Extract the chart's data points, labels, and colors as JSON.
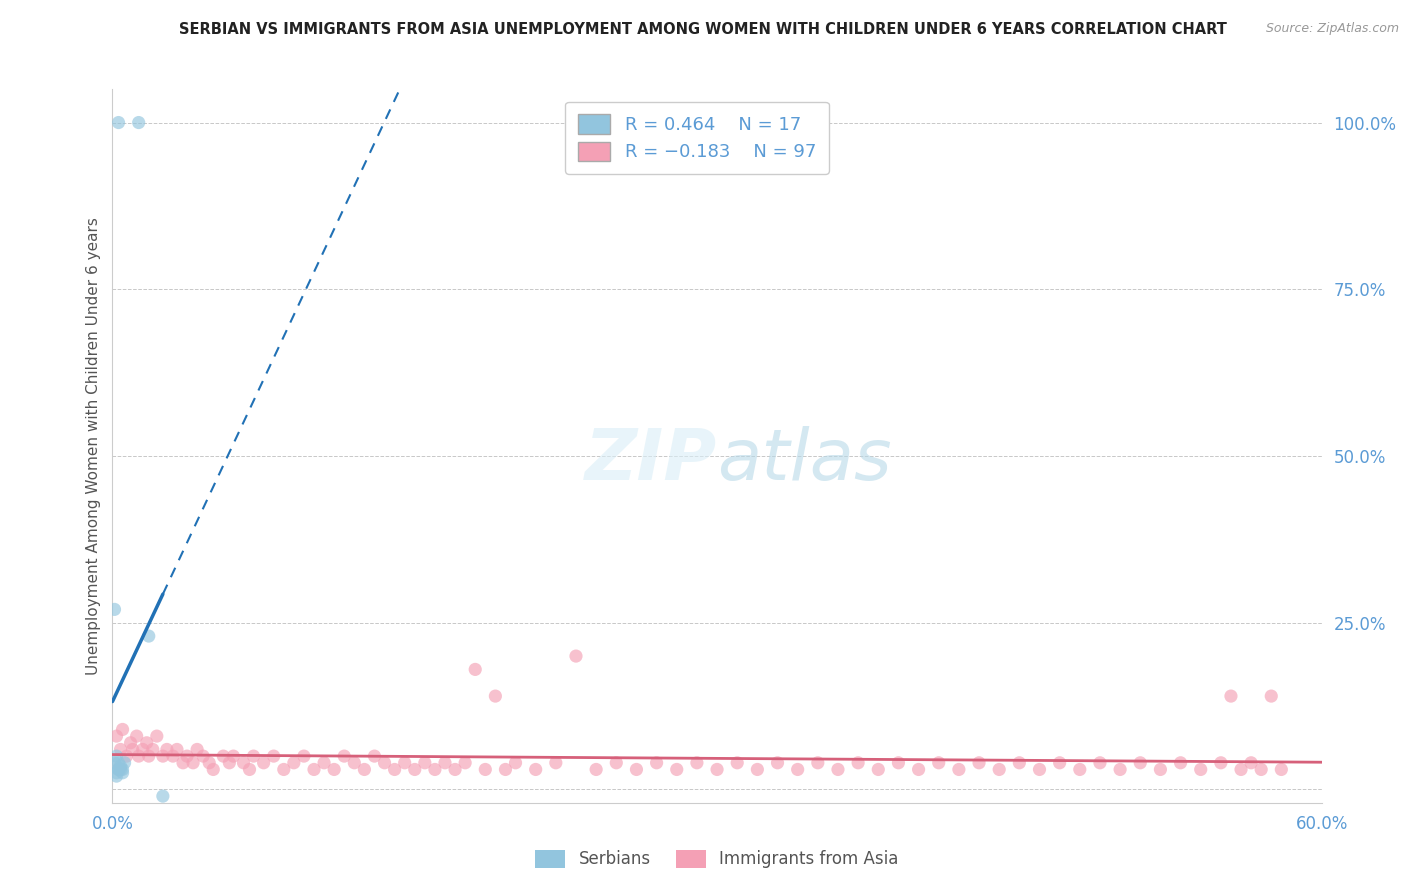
{
  "title": "SERBIAN VS IMMIGRANTS FROM ASIA UNEMPLOYMENT AMONG WOMEN WITH CHILDREN UNDER 6 YEARS CORRELATION CHART",
  "source": "Source: ZipAtlas.com",
  "ylabel": "Unemployment Among Women with Children Under 6 years",
  "xlim": [
    0.0,
    0.6
  ],
  "ylim": [
    -0.02,
    1.05
  ],
  "y_ticks_right": [
    0.0,
    0.25,
    0.5,
    0.75,
    1.0
  ],
  "y_tick_labels_right": [
    "",
    "25.0%",
    "50.0%",
    "75.0%",
    "100.0%"
  ],
  "legend_label_serbian": "Serbians",
  "legend_label_asia": "Immigrants from Asia",
  "color_serbian": "#92c5de",
  "color_asia": "#f4a0b5",
  "color_trendline_serbian": "#2171b5",
  "color_trendline_asia": "#d6607a",
  "color_axis_labels": "#5b9bd5",
  "background_color": "#ffffff",
  "serbian_x": [
    0.003,
    0.013,
    0.001,
    0.001,
    0.002,
    0.003,
    0.004,
    0.005,
    0.006,
    0.002,
    0.003,
    0.004,
    0.005,
    0.003,
    0.002,
    0.018,
    0.025
  ],
  "serbian_y": [
    1.0,
    1.0,
    0.27,
    0.04,
    0.05,
    0.04,
    0.035,
    0.03,
    0.04,
    0.025,
    0.03,
    0.03,
    0.025,
    0.03,
    0.02,
    0.23,
    -0.01
  ],
  "asia_x": [
    0.002,
    0.004,
    0.005,
    0.007,
    0.009,
    0.01,
    0.012,
    0.013,
    0.015,
    0.017,
    0.018,
    0.02,
    0.022,
    0.025,
    0.027,
    0.03,
    0.032,
    0.035,
    0.037,
    0.04,
    0.042,
    0.045,
    0.048,
    0.05,
    0.055,
    0.058,
    0.06,
    0.065,
    0.068,
    0.07,
    0.075,
    0.08,
    0.085,
    0.09,
    0.095,
    0.1,
    0.105,
    0.11,
    0.115,
    0.12,
    0.125,
    0.13,
    0.135,
    0.14,
    0.145,
    0.15,
    0.155,
    0.16,
    0.165,
    0.17,
    0.175,
    0.18,
    0.185,
    0.19,
    0.195,
    0.2,
    0.21,
    0.22,
    0.23,
    0.24,
    0.25,
    0.26,
    0.27,
    0.28,
    0.29,
    0.3,
    0.31,
    0.32,
    0.33,
    0.34,
    0.35,
    0.36,
    0.37,
    0.38,
    0.39,
    0.4,
    0.41,
    0.42,
    0.43,
    0.44,
    0.45,
    0.46,
    0.47,
    0.48,
    0.49,
    0.5,
    0.51,
    0.52,
    0.53,
    0.54,
    0.55,
    0.555,
    0.56,
    0.565,
    0.57,
    0.575,
    0.58
  ],
  "asia_y": [
    0.08,
    0.06,
    0.09,
    0.05,
    0.07,
    0.06,
    0.08,
    0.05,
    0.06,
    0.07,
    0.05,
    0.06,
    0.08,
    0.05,
    0.06,
    0.05,
    0.06,
    0.04,
    0.05,
    0.04,
    0.06,
    0.05,
    0.04,
    0.03,
    0.05,
    0.04,
    0.05,
    0.04,
    0.03,
    0.05,
    0.04,
    0.05,
    0.03,
    0.04,
    0.05,
    0.03,
    0.04,
    0.03,
    0.05,
    0.04,
    0.03,
    0.05,
    0.04,
    0.03,
    0.04,
    0.03,
    0.04,
    0.03,
    0.04,
    0.03,
    0.04,
    0.18,
    0.03,
    0.14,
    0.03,
    0.04,
    0.03,
    0.04,
    0.2,
    0.03,
    0.04,
    0.03,
    0.04,
    0.03,
    0.04,
    0.03,
    0.04,
    0.03,
    0.04,
    0.03,
    0.04,
    0.03,
    0.04,
    0.03,
    0.04,
    0.03,
    0.04,
    0.03,
    0.04,
    0.03,
    0.04,
    0.03,
    0.04,
    0.03,
    0.04,
    0.03,
    0.04,
    0.03,
    0.04,
    0.03,
    0.04,
    0.14,
    0.03,
    0.04,
    0.03,
    0.14,
    0.03
  ]
}
